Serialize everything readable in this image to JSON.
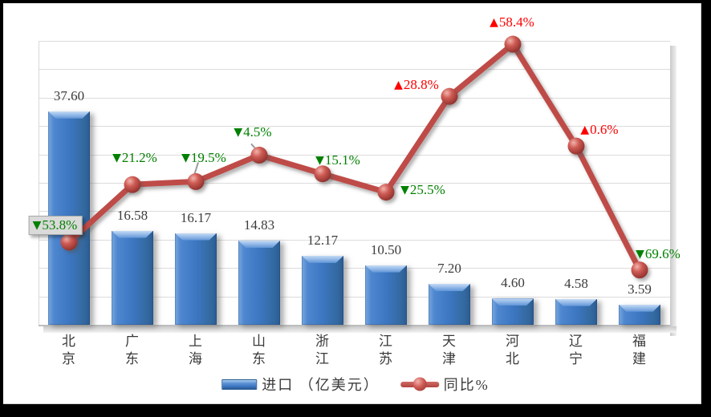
{
  "colors": {
    "bar": "#3d77c2",
    "line": "#be4b47",
    "marker_highlight": "#f2b3ac",
    "marker_dark": "#8e2f2b",
    "down_green": "#008000",
    "up_red": "#ff0000",
    "grid": "#dcdcdc",
    "value_text": "#3c3c3c",
    "highlight_box_fill": "#dadada"
  },
  "legend": {
    "position": "bottom",
    "items": [
      {
        "label": "进口 （亿美元）",
        "swatch": "bar-swatch-icon"
      },
      {
        "label": "同比%",
        "swatch": "line-marker-swatch-icon"
      }
    ]
  },
  "chart_data": {
    "type": "bar",
    "subtype": "combo bar+line, dual axis",
    "title": "",
    "xlabel": "",
    "ylabel": "",
    "grid": true,
    "legend_position": "bottom",
    "categories": [
      "北京",
      "广东",
      "上海",
      "山东",
      "浙江",
      "江苏",
      "天津",
      "河北",
      "辽宁",
      "福建"
    ],
    "y1lim": [
      0,
      50
    ],
    "y2lim": [
      -100,
      60
    ],
    "series": [
      {
        "name": "进口 （亿美元）",
        "type": "bar",
        "axis": "left",
        "values": [
          37.6,
          16.58,
          16.17,
          14.83,
          12.17,
          10.5,
          7.2,
          4.6,
          4.58,
          3.59
        ],
        "value_labels": [
          "37.60",
          "16.58",
          "16.17",
          "14.83",
          "12.17",
          "10.50",
          "7.20",
          "4.60",
          "4.58",
          "3.59"
        ]
      },
      {
        "name": "同比%",
        "type": "line",
        "axis": "right",
        "values": [
          -53.8,
          -21.2,
          -19.5,
          -4.5,
          -15.1,
          -25.5,
          28.8,
          58.4,
          0.6,
          -69.6
        ],
        "point_labels": [
          {
            "text": "53.8%",
            "direction": "down",
            "highlighted": true
          },
          {
            "text": "21.2%",
            "direction": "down",
            "highlighted": false
          },
          {
            "text": "19.5%",
            "direction": "down",
            "highlighted": false
          },
          {
            "text": "4.5%",
            "direction": "down",
            "highlighted": false
          },
          {
            "text": "15.1%",
            "direction": "down",
            "highlighted": false
          },
          {
            "text": "25.5%",
            "direction": "down",
            "highlighted": false
          },
          {
            "text": "28.8%",
            "direction": "up",
            "highlighted": false
          },
          {
            "text": "58.4%",
            "direction": "up",
            "highlighted": false
          },
          {
            "text": "0.6%",
            "direction": "up",
            "highlighted": false
          },
          {
            "text": "69.6%",
            "direction": "down",
            "highlighted": false
          }
        ]
      }
    ]
  }
}
